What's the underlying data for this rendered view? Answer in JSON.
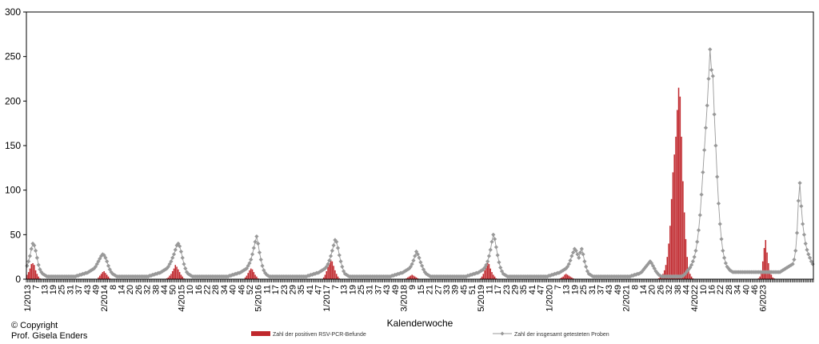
{
  "chart_data": {
    "type": "bar",
    "xlabel": "Kalenderwoche",
    "ylim": [
      0,
      300
    ],
    "yticks": [
      0,
      50,
      100,
      150,
      200,
      250,
      300
    ],
    "x_tick_labels": [
      "1/2013",
      "7",
      "13",
      "19",
      "25",
      "31",
      "37",
      "43",
      "49",
      "2/2014",
      "8",
      "14",
      "20",
      "26",
      "32",
      "38",
      "44",
      "50",
      "4/2015",
      "10",
      "16",
      "22",
      "28",
      "34",
      "40",
      "46",
      "52",
      "5/2016",
      "11",
      "17",
      "23",
      "29",
      "35",
      "41",
      "47",
      "1/2017",
      "7",
      "13",
      "19",
      "25",
      "31",
      "37",
      "43",
      "49",
      "3/2018",
      "9",
      "15",
      "21",
      "27",
      "33",
      "39",
      "45",
      "51",
      "5/2019",
      "11",
      "17",
      "23",
      "29",
      "35",
      "41",
      "47",
      "1/2020",
      "7",
      "13",
      "19",
      "25",
      "31",
      "37",
      "43",
      "49",
      "2/2021",
      "8",
      "14",
      "20",
      "26",
      "32",
      "38",
      "44",
      "4/2022",
      "10",
      "16",
      "22",
      "28",
      "34",
      "40",
      "46",
      "6/2023"
    ],
    "legend_position": "bottom",
    "series": [
      {
        "name": "Zahl der positiven RSV-PCR-Befunde",
        "style": "bar",
        "color": "#c0282d",
        "values": [
          5,
          8,
          12,
          17,
          18,
          16,
          10,
          6,
          3,
          1,
          0,
          0,
          0,
          0,
          0,
          0,
          0,
          0,
          0,
          0,
          0,
          0,
          0,
          0,
          0,
          0,
          0,
          0,
          0,
          0,
          0,
          0,
          0,
          0,
          0,
          0,
          0,
          0,
          0,
          0,
          0,
          0,
          0,
          0,
          0,
          0,
          0,
          0,
          0,
          0,
          2,
          4,
          6,
          8,
          9,
          7,
          5,
          3,
          1,
          0,
          0,
          0,
          0,
          0,
          0,
          0,
          0,
          0,
          0,
          0,
          0,
          0,
          0,
          0,
          0,
          0,
          0,
          0,
          0,
          0,
          0,
          0,
          0,
          0,
          0,
          0,
          0,
          0,
          0,
          0,
          0,
          0,
          0,
          0,
          0,
          0,
          0,
          0,
          1,
          2,
          4,
          6,
          9,
          12,
          16,
          14,
          11,
          8,
          5,
          3,
          1,
          0,
          0,
          0,
          0,
          0,
          0,
          0,
          0,
          0,
          0,
          0,
          0,
          0,
          0,
          0,
          0,
          0,
          0,
          0,
          0,
          0,
          0,
          0,
          0,
          0,
          0,
          0,
          0,
          0,
          0,
          0,
          0,
          0,
          0,
          0,
          0,
          0,
          0,
          0,
          0,
          0,
          0,
          2,
          4,
          7,
          10,
          12,
          11,
          8,
          5,
          3,
          1,
          0,
          0,
          0,
          0,
          0,
          0,
          0,
          0,
          0,
          0,
          0,
          0,
          0,
          0,
          0,
          0,
          0,
          0,
          0,
          0,
          0,
          0,
          0,
          0,
          0,
          0,
          0,
          0,
          0,
          0,
          0,
          0,
          0,
          0,
          0,
          0,
          0,
          0,
          0,
          0,
          0,
          0,
          0,
          0,
          0,
          2,
          5,
          9,
          14,
          18,
          22,
          20,
          15,
          10,
          6,
          3,
          1,
          0,
          0,
          0,
          0,
          0,
          0,
          0,
          0,
          0,
          0,
          0,
          0,
          0,
          0,
          0,
          0,
          0,
          0,
          0,
          0,
          0,
          0,
          0,
          0,
          0,
          0,
          0,
          0,
          0,
          0,
          0,
          0,
          0,
          0,
          0,
          0,
          0,
          0,
          0,
          0,
          0,
          0,
          0,
          0,
          0,
          0,
          1,
          2,
          3,
          4,
          5,
          4,
          3,
          2,
          1,
          0,
          0,
          0,
          0,
          0,
          0,
          0,
          0,
          0,
          0,
          0,
          0,
          0,
          0,
          0,
          0,
          0,
          0,
          0,
          0,
          0,
          0,
          0,
          0,
          0,
          0,
          0,
          0,
          0,
          0,
          0,
          0,
          0,
          0,
          0,
          0,
          0,
          0,
          0,
          0,
          0,
          0,
          0,
          1,
          3,
          6,
          10,
          15,
          20,
          17,
          12,
          8,
          5,
          3,
          1,
          0,
          0,
          0,
          0,
          0,
          0,
          0,
          0,
          0,
          0,
          0,
          0,
          0,
          0,
          0,
          0,
          0,
          0,
          0,
          0,
          0,
          0,
          0,
          0,
          0,
          0,
          0,
          0,
          0,
          0,
          0,
          0,
          0,
          0,
          0,
          0,
          0,
          0,
          0,
          0,
          0,
          0,
          0,
          0,
          1,
          2,
          3,
          5,
          6,
          5,
          4,
          3,
          2,
          1,
          0,
          0,
          0,
          0,
          0,
          0,
          0,
          0,
          0,
          0,
          0,
          0,
          0,
          0,
          0,
          0,
          0,
          0,
          0,
          0,
          0,
          0,
          0,
          0,
          0,
          0,
          0,
          0,
          0,
          0,
          0,
          0,
          0,
          0,
          0,
          0,
          0,
          0,
          0,
          0,
          0,
          0,
          0,
          0,
          0,
          0,
          0,
          0,
          0,
          0,
          0,
          0,
          0,
          0,
          0,
          0,
          0,
          0,
          0,
          1,
          2,
          4,
          6,
          10,
          16,
          25,
          40,
          60,
          90,
          120,
          140,
          160,
          190,
          215,
          205,
          160,
          110,
          75,
          45,
          25,
          12,
          6,
          3,
          1,
          0,
          0,
          0,
          0,
          0,
          0,
          0,
          0,
          0,
          0,
          0,
          0,
          0,
          0,
          0,
          0,
          0,
          0,
          0,
          0,
          0,
          0,
          0,
          0,
          0,
          0,
          0,
          0,
          0,
          0,
          0,
          0,
          0,
          0,
          0,
          0,
          0,
          0,
          0,
          0,
          0,
          0,
          0,
          0,
          0,
          1,
          3,
          8,
          20,
          35,
          44,
          30,
          18,
          10,
          5,
          2,
          1,
          0,
          0
        ]
      },
      {
        "name": "Zahl der insgesamt getesteten Proben",
        "style": "line-marker",
        "color": "#999999",
        "values": [
          15,
          20,
          26,
          34,
          40,
          38,
          32,
          24,
          16,
          11,
          8,
          6,
          5,
          4,
          3,
          3,
          3,
          3,
          3,
          3,
          3,
          3,
          3,
          3,
          3,
          3,
          3,
          3,
          3,
          3,
          3,
          3,
          3,
          3,
          3,
          4,
          4,
          5,
          5,
          6,
          6,
          7,
          7,
          8,
          9,
          10,
          11,
          12,
          14,
          17,
          20,
          23,
          26,
          28,
          27,
          24,
          20,
          15,
          11,
          8,
          6,
          5,
          4,
          3,
          3,
          3,
          3,
          3,
          3,
          3,
          3,
          3,
          3,
          3,
          3,
          3,
          3,
          3,
          3,
          3,
          3,
          3,
          3,
          3,
          3,
          3,
          4,
          4,
          5,
          5,
          6,
          6,
          7,
          7,
          8,
          9,
          10,
          11,
          12,
          14,
          17,
          20,
          24,
          28,
          33,
          38,
          40,
          37,
          31,
          24,
          17,
          12,
          8,
          6,
          5,
          4,
          3,
          3,
          3,
          3,
          3,
          3,
          3,
          3,
          3,
          3,
          3,
          3,
          3,
          3,
          3,
          3,
          3,
          3,
          3,
          3,
          3,
          3,
          3,
          3,
          3,
          3,
          4,
          4,
          5,
          5,
          6,
          6,
          7,
          7,
          8,
          9,
          10,
          11,
          12,
          15,
          18,
          22,
          28,
          35,
          42,
          48,
          40,
          30,
          22,
          15,
          10,
          7,
          5,
          4,
          3,
          3,
          3,
          3,
          3,
          3,
          3,
          3,
          3,
          3,
          3,
          3,
          3,
          3,
          3,
          3,
          3,
          3,
          3,
          3,
          3,
          3,
          3,
          3,
          3,
          3,
          3,
          4,
          4,
          5,
          5,
          6,
          6,
          7,
          7,
          8,
          9,
          10,
          11,
          12,
          14,
          17,
          21,
          26,
          32,
          38,
          44,
          42,
          35,
          27,
          20,
          14,
          9,
          6,
          5,
          4,
          3,
          3,
          3,
          3,
          3,
          3,
          3,
          3,
          3,
          3,
          3,
          3,
          3,
          3,
          3,
          3,
          3,
          3,
          3,
          3,
          3,
          3,
          3,
          3,
          3,
          3,
          3,
          3,
          3,
          3,
          4,
          4,
          5,
          5,
          6,
          6,
          7,
          7,
          8,
          9,
          10,
          11,
          12,
          14,
          17,
          21,
          26,
          31,
          28,
          24,
          19,
          15,
          11,
          8,
          6,
          5,
          4,
          3,
          3,
          3,
          3,
          3,
          3,
          3,
          3,
          3,
          3,
          3,
          3,
          3,
          3,
          3,
          3,
          3,
          3,
          3,
          3,
          3,
          3,
          3,
          3,
          3,
          3,
          4,
          4,
          5,
          5,
          6,
          6,
          7,
          7,
          8,
          9,
          10,
          11,
          13,
          16,
          20,
          26,
          33,
          42,
          50,
          45,
          36,
          27,
          19,
          13,
          9,
          6,
          5,
          4,
          3,
          3,
          3,
          3,
          3,
          3,
          3,
          3,
          3,
          3,
          3,
          3,
          3,
          3,
          3,
          3,
          3,
          3,
          3,
          3,
          3,
          3,
          3,
          3,
          3,
          3,
          3,
          3,
          3,
          4,
          4,
          5,
          5,
          6,
          6,
          7,
          7,
          8,
          9,
          10,
          11,
          12,
          14,
          17,
          21,
          26,
          30,
          34,
          32,
          28,
          24,
          30,
          34,
          28,
          20,
          14,
          9,
          6,
          5,
          4,
          3,
          3,
          3,
          3,
          3,
          3,
          3,
          3,
          3,
          3,
          3,
          3,
          3,
          3,
          3,
          3,
          3,
          3,
          3,
          3,
          3,
          3,
          3,
          3,
          3,
          3,
          3,
          4,
          4,
          5,
          5,
          6,
          6,
          7,
          8,
          10,
          12,
          14,
          16,
          18,
          20,
          18,
          15,
          12,
          9,
          7,
          5,
          4,
          3,
          3,
          3,
          3,
          3,
          3,
          3,
          3,
          3,
          3,
          3,
          3,
          3,
          3,
          3,
          4,
          5,
          7,
          9,
          11,
          13,
          16,
          20,
          25,
          32,
          42,
          55,
          72,
          95,
          120,
          145,
          170,
          195,
          225,
          258,
          235,
          228,
          185,
          150,
          115,
          85,
          62,
          45,
          32,
          24,
          18,
          14,
          12,
          10,
          9,
          8,
          8,
          8,
          8,
          8,
          8,
          8,
          8,
          8,
          8,
          8,
          8,
          8,
          8,
          8,
          8,
          8,
          8,
          8,
          8,
          8,
          8,
          8,
          8,
          8,
          8,
          8,
          8,
          8,
          8,
          8,
          8,
          8,
          8,
          9,
          10,
          11,
          12,
          13,
          14,
          15,
          16,
          17,
          22,
          32,
          52,
          88,
          108,
          82,
          62,
          50,
          40,
          33,
          28,
          24,
          20,
          17
        ]
      }
    ]
  },
  "footer": {
    "copyright_line1": "© Copyright",
    "copyright_line2": "Prof. Gisela Enders"
  }
}
